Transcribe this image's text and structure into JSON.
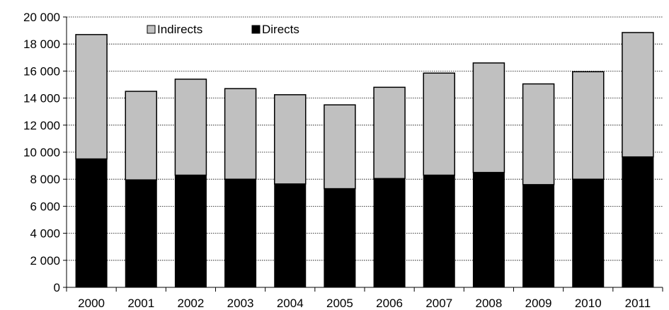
{
  "chart_data": {
    "type": "bar",
    "stacked": true,
    "categories": [
      "2000",
      "2001",
      "2002",
      "2003",
      "2004",
      "2005",
      "2006",
      "2007",
      "2008",
      "2009",
      "2010",
      "2011"
    ],
    "series": [
      {
        "name": "Directs",
        "color": "#000000",
        "values": [
          9500,
          7950,
          8300,
          8000,
          7650,
          7300,
          8050,
          8300,
          8500,
          7600,
          8000,
          9650
        ]
      },
      {
        "name": "Indirects",
        "color": "#c0c0c0",
        "values": [
          9200,
          6550,
          7100,
          6700,
          6600,
          6200,
          6750,
          7550,
          8100,
          7450,
          7950,
          9200
        ]
      }
    ],
    "yticks": [
      "0",
      "2 000",
      "4 000",
      "6 000",
      "8 000",
      "10 000",
      "12 000",
      "14 000",
      "16 000",
      "18 000",
      "20 000"
    ],
    "ylim": [
      0,
      20000
    ],
    "grid": true,
    "legend": {
      "position": "top-left",
      "order": [
        "Indirects",
        "Directs"
      ]
    },
    "title": "",
    "xlabel": "",
    "ylabel": ""
  }
}
